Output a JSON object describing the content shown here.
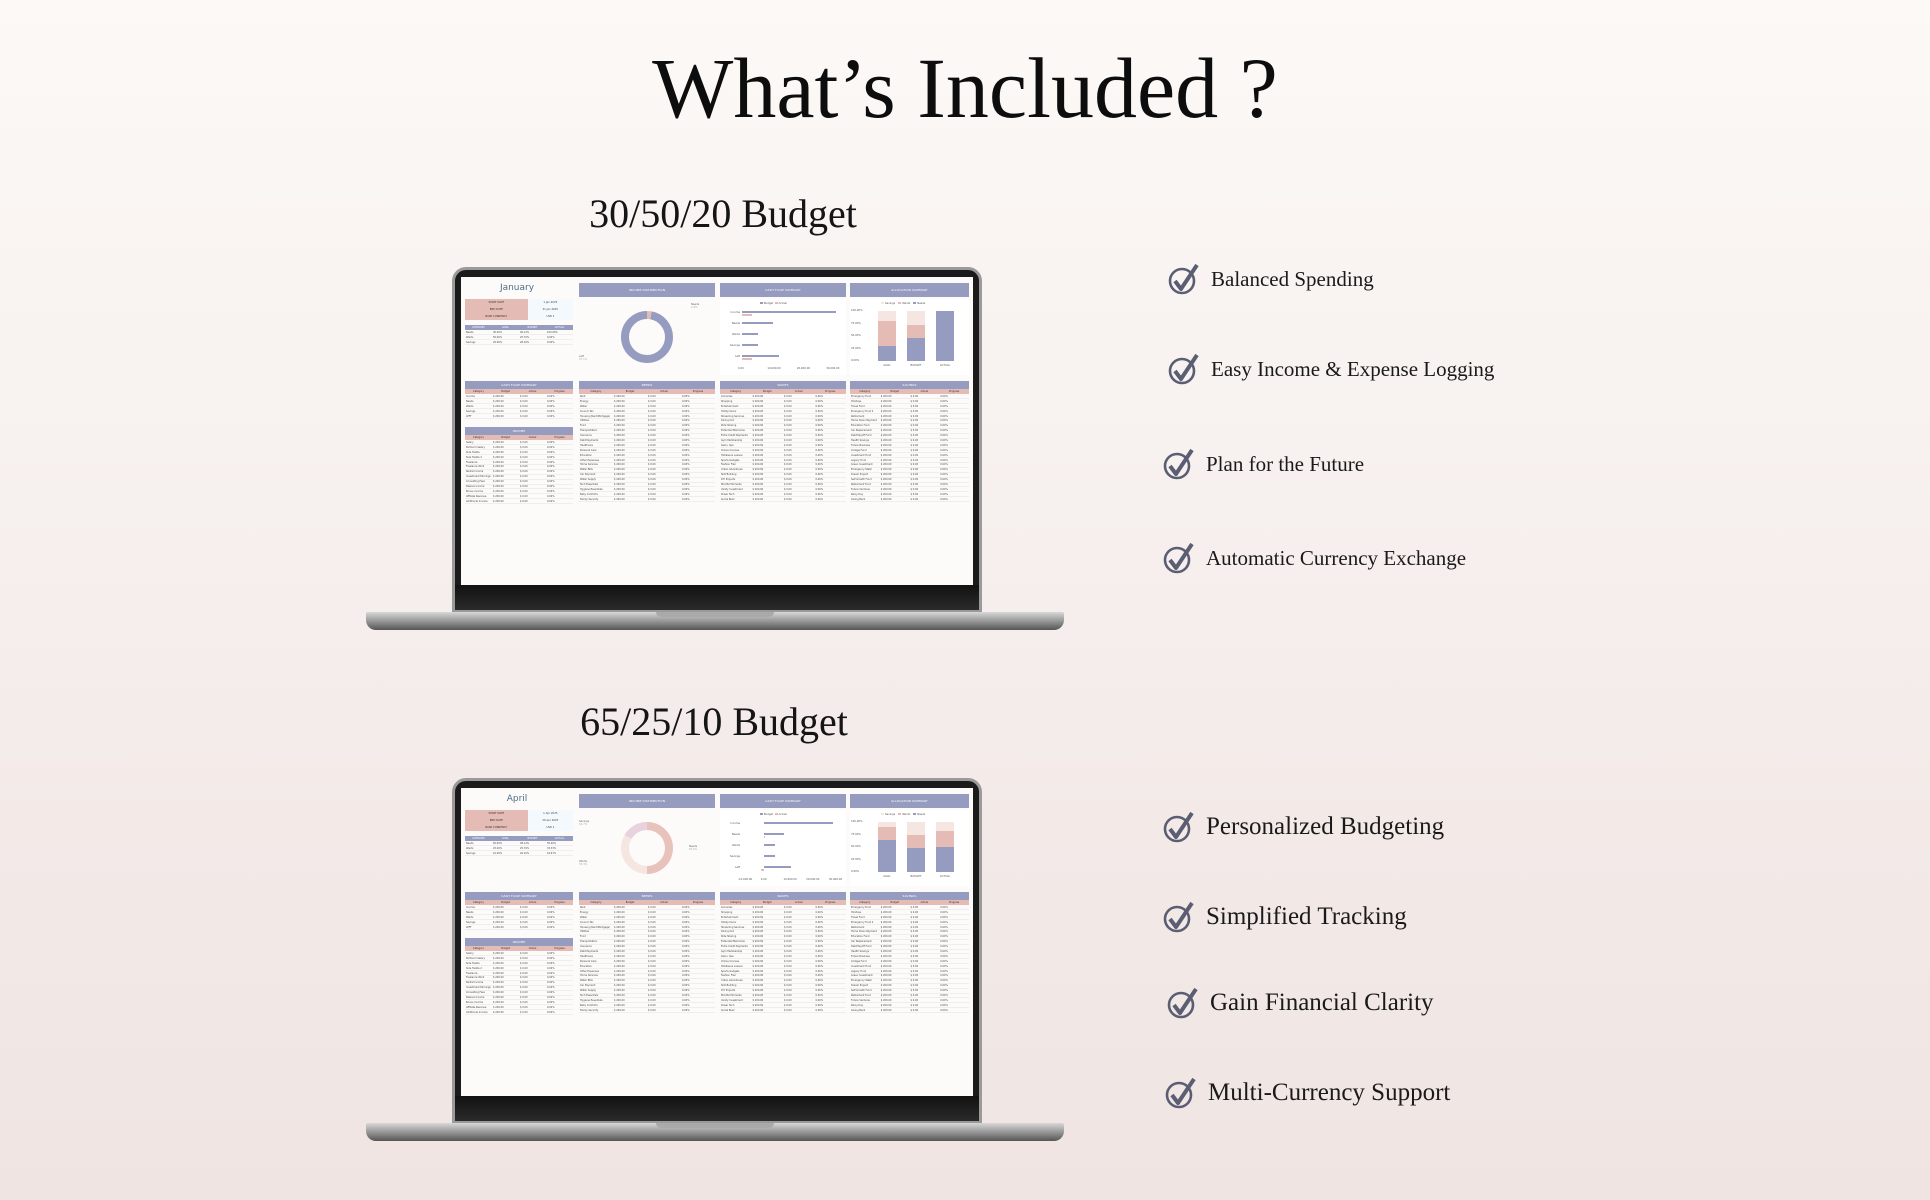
{
  "title": "What’s Included ?",
  "colors": {
    "accent_blue": "#969cbf",
    "accent_pink": "#e5bcb5",
    "check": "#5b5d73"
  },
  "common": {
    "col_headers": [
      "Category",
      "Budget",
      "Actual",
      "Progress"
    ],
    "top_headers": [
      "CATEGORY",
      "GOAL",
      "BUDGET",
      "ACTUAL"
    ],
    "labels": {
      "start": "START DATE",
      "end": "END DATE",
      "currency": "BASE CURRENCY",
      "income_dist": "INCOME DISTRIBUTION",
      "cash_flow": "CASH FLOW SUMMARY",
      "allocation": "ALLOCATION  SUMMARY",
      "needs": "NEEDS",
      "wants": "WANTS",
      "savings": "SAVINGS",
      "income": "INCOME",
      "budget": "Budget",
      "actual": "Actual",
      "legend_savings": "Savings",
      "legend_wants": "Wants",
      "legend_needs": "Needs",
      "alloc_cats": [
        "GOAL",
        "BUDGET",
        "ACTUAL"
      ],
      "cash_cats": [
        "Income",
        "Needs",
        "Wants",
        "Savings",
        "Left"
      ],
      "alloc_ticks": [
        "100.00%",
        "75.00%",
        "50.00%",
        "25.00%",
        "0.00%"
      ]
    },
    "cash_rows": [
      "Income",
      "Needs",
      "Wants",
      "Savings",
      "LEFT"
    ],
    "income_rows": [
      "Salary",
      "Partner's Salary",
      "Side Hustle",
      "Side Hustle 2",
      "Freelance",
      "Freelance Work",
      "Rental Income",
      "Investment Earnings",
      "Consulting Fees",
      "Passive Income",
      "Bonus Income",
      "Affiliate Revenue",
      "Additional Income"
    ],
    "needs_rows": [
      "Rent",
      "Energy",
      "Water",
      "Council Tax",
      "Housing (Rent/Mortgage)",
      "Utilities",
      "Food",
      "Transportation",
      "Insurance",
      "Debt Payments",
      "Healthcare",
      "Personal Care",
      "Education",
      "Other Expenses",
      "Home Services",
      "Water Bills",
      "Car Payment",
      "Water Supply",
      "Tech Essentials",
      "Hygiene Essentials",
      "Baby Comforts",
      "Family Security"
    ],
    "wants_rows": [
      "Groceries",
      "Shopping",
      "Entertainment",
      "Hobby Decor",
      "Streaming Services",
      "Dining Out",
      "Ride Sharing",
      "Extended Memories",
      "Extra Credit Payments",
      "Gym Membership",
      "Salon, Spa",
      "Online Courses",
      "Hobbies & Leisure",
      "Sports Gadgets",
      "Fashion Flair",
      "Urban Adventures",
      "Skill Building",
      "DIY Projects",
      "Mindful Moments",
      "Vanity Investment",
      "Power Tech",
      "Social Buzz"
    ],
    "savings_rows": [
      "Emergency Fund",
      "Holidays",
      "Travel Fund",
      "Emergency Fund 2",
      "Retirement",
      "Home Down Payment",
      "Education Fund",
      "Car Replacement",
      "Debt Payoff Fund",
      "Health Savings",
      "Future Business",
      "College Fund",
      "Investment Fund",
      "Legacy Fund",
      "Green Investment",
      "Emergency Stash",
      "Dream Project",
      "Self Growth Fund",
      "Retirement Fund",
      "Future Ventures",
      "Rainy Day",
      "Giving Back"
    ],
    "row_budget": "$ 200.00",
    "row_actual": "$ 0.00",
    "row_progress": "0.00%"
  },
  "sections": [
    {
      "heading": "30/50/20 Budget",
      "features": [
        "Balanced Spending",
        "Easy Income & Expense Logging",
        "Plan for the Future",
        "Automatic Currency Exchange"
      ],
      "dashboard": {
        "month": "January",
        "start_date": "1 Jan 2025",
        "end_date": "31 Jan 2025",
        "currency": "USD",
        "category_rows": [
          [
            "Needs",
            "30.00%",
            "46.14%",
            "100.00%"
          ],
          [
            "Wants",
            "50.00%",
            "25.70%",
            "0.00%"
          ],
          [
            "Savings",
            "20.00%",
            "28.16%",
            "0.00%"
          ]
        ],
        "donut": [
          {
            "label": "Needs",
            "pct": 2.9,
            "color": "#e5bcb5"
          },
          {
            "label": "Left",
            "pct": 97.1,
            "color": "#969cbf"
          }
        ],
        "cash_axis": {
          "min": 0,
          "max": 35000,
          "ticks": [
            "0.00",
            "10,000.00",
            "20,000.00",
            "30,000.00"
          ]
        },
        "cash_budget": [
          33000,
          11000,
          5500,
          5500,
          13000
        ],
        "cash_actual": [
          3500,
          0,
          0,
          0,
          3500
        ],
        "alloc": {
          "needs": [
            30,
            46,
            100
          ],
          "wants": [
            50,
            26,
            0
          ],
          "savings": [
            20,
            28,
            0
          ]
        }
      }
    },
    {
      "heading": "65/25/10 Budget",
      "features": [
        "Personalized Budgeting",
        "Simplified Tracking",
        "Gain Financial Clarity",
        "Multi-Currency Support"
      ],
      "dashboard": {
        "month": "April",
        "start_date": "1 Apr 2025",
        "end_date": "30 Apr 2025",
        "currency": "USD",
        "category_rows": [
          [
            "Needs",
            "65.00%",
            "48.14%",
            "50.00%"
          ],
          [
            "Wants",
            "25.00%",
            "25.70%",
            "33.33%"
          ],
          [
            "Savings",
            "10.00%",
            "26.16%",
            "16.67%"
          ]
        ],
        "donut": [
          {
            "label": "Needs",
            "pct": 50.0,
            "color": "#e8c3bc"
          },
          {
            "label": "Wants",
            "pct": 33.3,
            "color": "#f6e6e2"
          },
          {
            "label": "Savings",
            "pct": 16.7,
            "color": "#e8d2de"
          }
        ],
        "cash_axis": {
          "min": -10000,
          "max": 35000,
          "ticks": [
            "-10,000.00",
            "0.00",
            "10,000.00",
            "20,000.00",
            "30,000.00"
          ]
        },
        "cash_budget": [
          31000,
          9000,
          5000,
          5000,
          12000
        ],
        "cash_actual": [
          0,
          300,
          0,
          0,
          -1500
        ],
        "alloc": {
          "needs": [
            65,
            48,
            50
          ],
          "wants": [
            25,
            26,
            33
          ],
          "savings": [
            10,
            26,
            17
          ]
        }
      }
    }
  ]
}
